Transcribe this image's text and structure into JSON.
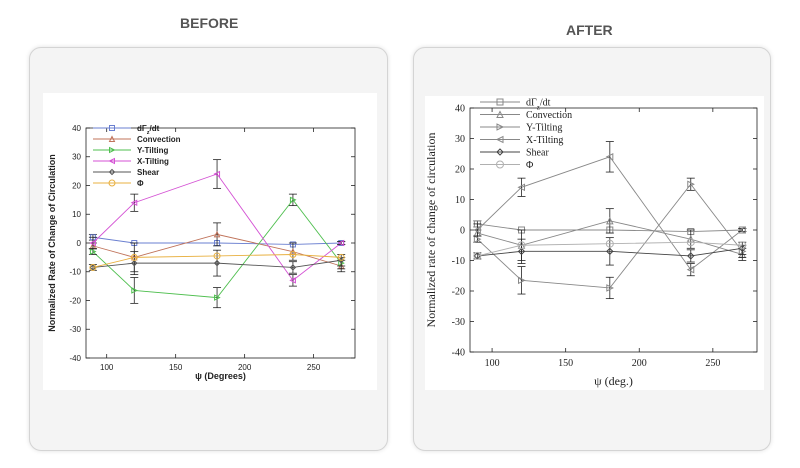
{
  "headings": {
    "before": "BEFORE",
    "after": "AFTER"
  },
  "chart_data": [
    {
      "type": "line",
      "panel": "before",
      "title": "",
      "xlabel": "ψ (Degrees)",
      "ylabel": "Normalized Rate of Change of Circulation",
      "xlim": [
        85,
        280
      ],
      "ylim": [
        -40,
        40
      ],
      "xticks": [
        100,
        150,
        200,
        250
      ],
      "yticks": [
        -40,
        -30,
        -20,
        -10,
        0,
        10,
        20,
        30,
        40
      ],
      "grid": false,
      "legend": "top-left",
      "x": [
        90,
        120,
        180,
        235,
        270
      ],
      "series": [
        {
          "name": "dΓz/dt",
          "values": [
            2,
            0,
            0,
            -0.5,
            0
          ],
          "err": [
            1,
            0,
            0,
            0,
            0.5
          ],
          "color": "#6a7fd0",
          "marker": "square"
        },
        {
          "name": "Convection",
          "values": [
            -1,
            -5,
            3,
            -3,
            -8
          ],
          "err": [
            1,
            5,
            4,
            3,
            2
          ],
          "color": "#c0735a",
          "marker": "triangle-up"
        },
        {
          "name": "Y-Tilting",
          "values": [
            -3,
            -16.5,
            -19,
            15,
            -7
          ],
          "err": [
            1,
            4.5,
            3.5,
            2,
            2
          ],
          "color": "#4fbf4f",
          "marker": "triangle-right"
        },
        {
          "name": "X-Tilting",
          "values": [
            0,
            14,
            24,
            -13,
            0
          ],
          "err": [
            2,
            3,
            5,
            2,
            0.5
          ],
          "color": "#d452d4",
          "marker": "triangle-left"
        },
        {
          "name": "Shear",
          "values": [
            -8.5,
            -7,
            -7,
            -8.5,
            -6
          ],
          "err": [
            1,
            4,
            4.5,
            2,
            2
          ],
          "color": "#555555",
          "marker": "diamond"
        },
        {
          "name": "Φ",
          "values": [
            -8.5,
            -5,
            -4.5,
            -4,
            -5
          ],
          "err": [
            0,
            0,
            0,
            0,
            0
          ],
          "color": "#e8b040",
          "marker": "circle"
        }
      ]
    },
    {
      "type": "line",
      "panel": "after",
      "title": "",
      "xlabel": "ψ (deg.)",
      "ylabel": "Normalized rate of change of circulation",
      "xlim": [
        85,
        280
      ],
      "ylim": [
        -40,
        40
      ],
      "xticks": [
        100,
        150,
        200,
        250
      ],
      "yticks": [
        -40,
        -30,
        -20,
        -10,
        0,
        10,
        20,
        30,
        40
      ],
      "grid": false,
      "legend": "top-left",
      "x": [
        90,
        120,
        180,
        235,
        270
      ],
      "series": [
        {
          "name": "dΓz/dt",
          "values": [
            2,
            0,
            0,
            -0.5,
            0
          ],
          "err": [
            1,
            0,
            0,
            0,
            0.5
          ],
          "color": "#888888",
          "marker": "square"
        },
        {
          "name": "Convection",
          "values": [
            -1,
            -5,
            3,
            -3,
            -8
          ],
          "err": [
            1,
            5,
            4,
            3,
            2
          ],
          "color": "#888888",
          "marker": "triangle-up"
        },
        {
          "name": "Y-Tilting",
          "values": [
            -3,
            -16.5,
            -19,
            15,
            -7
          ],
          "err": [
            1,
            4.5,
            3.5,
            2,
            2
          ],
          "color": "#888888",
          "marker": "triangle-right"
        },
        {
          "name": "X-Tilting",
          "values": [
            0,
            14,
            24,
            -13,
            0
          ],
          "err": [
            2,
            3,
            5,
            2,
            0.5
          ],
          "color": "#888888",
          "marker": "triangle-left"
        },
        {
          "name": "Shear",
          "values": [
            -8.5,
            -7,
            -7,
            -8.5,
            -6
          ],
          "err": [
            1,
            4,
            4.5,
            2,
            2
          ],
          "color": "#444444",
          "marker": "diamond"
        },
        {
          "name": "Φ",
          "values": [
            -8.5,
            -5,
            -4.5,
            -4,
            -5
          ],
          "err": [
            0,
            0,
            0,
            0,
            0
          ],
          "color": "#b0b0b0",
          "marker": "circle"
        }
      ]
    }
  ]
}
